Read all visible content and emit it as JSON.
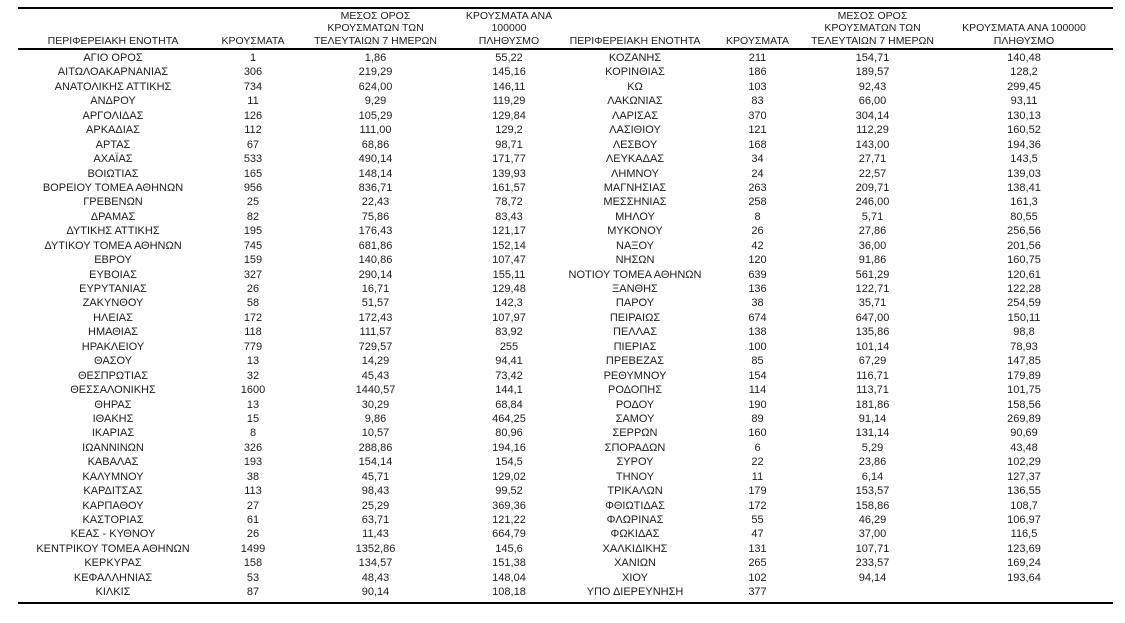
{
  "table": {
    "headers": {
      "region": "ΠΕΡΙΦΕΡΕΙΑΚΗ ΕΝΟΤΗΤΑ",
      "cases": "ΚΡΟΥΣΜΑΤΑ",
      "avg7": "ΜΕΣΟΣ ΟΡΟΣ\nΚΡΟΥΣΜΑΤΩΝ ΤΩΝ\nΤΕΛΕΥΤΑΙΩΝ 7 ΗΜΕΡΩΝ",
      "per100k": "ΚΡΟΥΣΜΑΤΑ ΑΝΑ 100000\nΠΛΗΘΥΣΜΟ"
    },
    "left_rows": [
      [
        "ΑΓΙΟ ΟΡΟΣ",
        "1",
        "1,86",
        "55,22"
      ],
      [
        "ΑΙΤΩΛΟΑΚΑΡΝΑΝΙΑΣ",
        "306",
        "219,29",
        "145,16"
      ],
      [
        "ΑΝΑΤΟΛΙΚΗΣ ΑΤΤΙΚΗΣ",
        "734",
        "624,00",
        "146,11"
      ],
      [
        "ΑΝΔΡΟΥ",
        "11",
        "9,29",
        "119,29"
      ],
      [
        "ΑΡΓΟΛΙΔΑΣ",
        "126",
        "105,29",
        "129,84"
      ],
      [
        "ΑΡΚΑΔΙΑΣ",
        "112",
        "111,00",
        "129,2"
      ],
      [
        "ΑΡΤΑΣ",
        "67",
        "68,86",
        "98,71"
      ],
      [
        "ΑΧΑΪΑΣ",
        "533",
        "490,14",
        "171,77"
      ],
      [
        "ΒΟΙΩΤΙΑΣ",
        "165",
        "148,14",
        "139,93"
      ],
      [
        "ΒΟΡΕΙΟΥ ΤΟΜΕΑ ΑΘΗΝΩΝ",
        "956",
        "836,71",
        "161,57"
      ],
      [
        "ΓΡΕΒΕΝΩΝ",
        "25",
        "22,43",
        "78,72"
      ],
      [
        "ΔΡΑΜΑΣ",
        "82",
        "75,86",
        "83,43"
      ],
      [
        "ΔΥΤΙΚΗΣ ΑΤΤΙΚΗΣ",
        "195",
        "176,43",
        "121,17"
      ],
      [
        "ΔΥΤΙΚΟΥ ΤΟΜΕΑ ΑΘΗΝΩΝ",
        "745",
        "681,86",
        "152,14"
      ],
      [
        "ΕΒΡΟΥ",
        "159",
        "140,86",
        "107,47"
      ],
      [
        "ΕΥΒΟΙΑΣ",
        "327",
        "290,14",
        "155,11"
      ],
      [
        "ΕΥΡΥΤΑΝΙΑΣ",
        "26",
        "16,71",
        "129,48"
      ],
      [
        "ΖΑΚΥΝΘΟΥ",
        "58",
        "51,57",
        "142,3"
      ],
      [
        "ΗΛΕΙΑΣ",
        "172",
        "172,43",
        "107,97"
      ],
      [
        "ΗΜΑΘΙΑΣ",
        "118",
        "111,57",
        "83,92"
      ],
      [
        "ΗΡΑΚΛΕΙΟΥ",
        "779",
        "729,57",
        "255"
      ],
      [
        "ΘΑΣΟΥ",
        "13",
        "14,29",
        "94,41"
      ],
      [
        "ΘΕΣΠΡΩΤΙΑΣ",
        "32",
        "45,43",
        "73,42"
      ],
      [
        "ΘΕΣΣΑΛΟΝΙΚΗΣ",
        "1600",
        "1440,57",
        "144,1"
      ],
      [
        "ΘΗΡΑΣ",
        "13",
        "30,29",
        "68,84"
      ],
      [
        "ΙΘΑΚΗΣ",
        "15",
        "9,86",
        "464,25"
      ],
      [
        "ΙΚΑΡΙΑΣ",
        "8",
        "10,57",
        "80,96"
      ],
      [
        "ΙΩΑΝΝΙΝΩΝ",
        "326",
        "288,86",
        "194,16"
      ],
      [
        "ΚΑΒΑΛΑΣ",
        "193",
        "154,14",
        "154,5"
      ],
      [
        "ΚΑΛΥΜΝΟΥ",
        "38",
        "45,71",
        "129,02"
      ],
      [
        "ΚΑΡΔΙΤΣΑΣ",
        "113",
        "98,43",
        "99,52"
      ],
      [
        "ΚΑΡΠΑΘΟΥ",
        "27",
        "25,29",
        "369,36"
      ],
      [
        "ΚΑΣΤΟΡΙΑΣ",
        "61",
        "63,71",
        "121,22"
      ],
      [
        "ΚΕΑΣ - ΚΥΘΝΟΥ",
        "26",
        "11,43",
        "664,79"
      ],
      [
        "ΚΕΝΤΡΙΚΟΥ ΤΟΜΕΑ ΑΘΗΝΩΝ",
        "1499",
        "1352,86",
        "145,6"
      ],
      [
        "ΚΕΡΚΥΡΑΣ",
        "158",
        "134,57",
        "151,38"
      ],
      [
        "ΚΕΦΑΛΛΗΝΙΑΣ",
        "53",
        "48,43",
        "148,04"
      ],
      [
        "ΚΙΛΚΙΣ",
        "87",
        "90,14",
        "108,18"
      ]
    ],
    "right_rows": [
      [
        "ΚΟΖΑΝΗΣ",
        "211",
        "154,71",
        "140,48"
      ],
      [
        "ΚΟΡΙΝΘΙΑΣ",
        "186",
        "189,57",
        "128,2"
      ],
      [
        "ΚΩ",
        "103",
        "92,43",
        "299,45"
      ],
      [
        "ΛΑΚΩΝΙΑΣ",
        "83",
        "66,00",
        "93,11"
      ],
      [
        "ΛΑΡΙΣΑΣ",
        "370",
        "304,14",
        "130,13"
      ],
      [
        "ΛΑΣΙΘΙΟΥ",
        "121",
        "112,29",
        "160,52"
      ],
      [
        "ΛΕΣΒΟΥ",
        "168",
        "143,00",
        "194,36"
      ],
      [
        "ΛΕΥΚΑΔΑΣ",
        "34",
        "27,71",
        "143,5"
      ],
      [
        "ΛΗΜΝΟΥ",
        "24",
        "22,57",
        "139,03"
      ],
      [
        "ΜΑΓΝΗΣΙΑΣ",
        "263",
        "209,71",
        "138,41"
      ],
      [
        "ΜΕΣΣΗΝΙΑΣ",
        "258",
        "246,00",
        "161,3"
      ],
      [
        "ΜΗΛΟΥ",
        "8",
        "5,71",
        "80,55"
      ],
      [
        "ΜΥΚΟΝΟΥ",
        "26",
        "27,86",
        "256,56"
      ],
      [
        "ΝΑΞΟΥ",
        "42",
        "36,00",
        "201,56"
      ],
      [
        "ΝΗΣΩΝ",
        "120",
        "91,86",
        "160,75"
      ],
      [
        "ΝΟΤΙΟΥ ΤΟΜΕΑ ΑΘΗΝΩΝ",
        "639",
        "561,29",
        "120,61"
      ],
      [
        "ΞΑΝΘΗΣ",
        "136",
        "122,71",
        "122,28"
      ],
      [
        "ΠΑΡΟΥ",
        "38",
        "35,71",
        "254,59"
      ],
      [
        "ΠΕΙΡΑΙΩΣ",
        "674",
        "647,00",
        "150,11"
      ],
      [
        "ΠΕΛΛΑΣ",
        "138",
        "135,86",
        "98,8"
      ],
      [
        "ΠΙΕΡΙΑΣ",
        "100",
        "101,14",
        "78,93"
      ],
      [
        "ΠΡΕΒΕΖΑΣ",
        "85",
        "67,29",
        "147,85"
      ],
      [
        "ΡΕΘΥΜΝΟΥ",
        "154",
        "116,71",
        "179,89"
      ],
      [
        "ΡΟΔΟΠΗΣ",
        "114",
        "113,71",
        "101,75"
      ],
      [
        "ΡΟΔΟΥ",
        "190",
        "181,86",
        "158,56"
      ],
      [
        "ΣΑΜΟΥ",
        "89",
        "91,14",
        "269,89"
      ],
      [
        "ΣΕΡΡΩΝ",
        "160",
        "131,14",
        "90,69"
      ],
      [
        "ΣΠΟΡΑΔΩΝ",
        "6",
        "5,29",
        "43,48"
      ],
      [
        "ΣΥΡΟΥ",
        "22",
        "23,86",
        "102,29"
      ],
      [
        "ΤΗΝΟΥ",
        "11",
        "6,14",
        "127,37"
      ],
      [
        "ΤΡΙΚΑΛΩΝ",
        "179",
        "153,57",
        "136,55"
      ],
      [
        "ΦΘΙΩΤΙΔΑΣ",
        "172",
        "158,86",
        "108,7"
      ],
      [
        "ΦΛΩΡΙΝΑΣ",
        "55",
        "46,29",
        "106,97"
      ],
      [
        "ΦΩΚΙΔΑΣ",
        "47",
        "37,00",
        "116,5"
      ],
      [
        "ΧΑΛΚΙΔΙΚΗΣ",
        "131",
        "107,71",
        "123,69"
      ],
      [
        "ΧΑΝΙΩΝ",
        "265",
        "233,57",
        "169,24"
      ],
      [
        "ΧΙΟΥ",
        "102",
        "94,14",
        "193,64"
      ],
      [
        "ΥΠΟ ΔΙΕΡΕΥΝΗΣΗ",
        "377",
        "",
        ""
      ]
    ]
  }
}
